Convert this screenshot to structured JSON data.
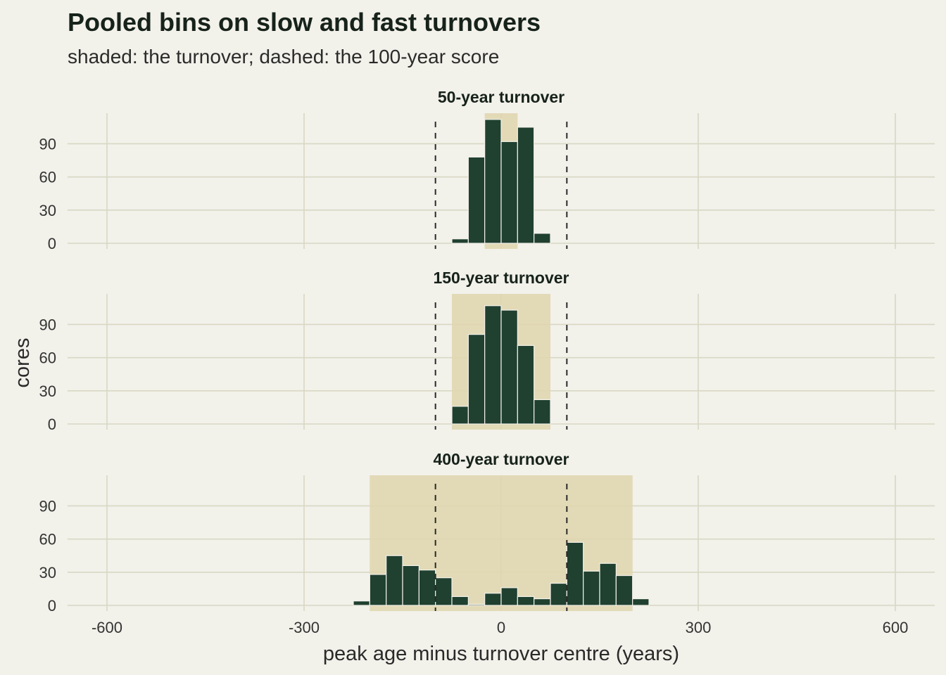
{
  "chart_data": {
    "type": "bar",
    "title": "Pooled bins on slow and fast turnovers",
    "subtitle": "shaded: the turnover; dashed: the 100-year score",
    "xlabel": "peak age minus turnover centre (years)",
    "ylabel": "cores",
    "xlim": [
      -660,
      660
    ],
    "ylim": [
      0,
      120
    ],
    "x_ticks": [
      -600,
      -300,
      0,
      300,
      600
    ],
    "x_tick_labels": [
      "-600",
      "-300",
      "0",
      "300",
      "600"
    ],
    "y_ticks": [
      0,
      30,
      60,
      90
    ],
    "y_tick_labels": [
      "0",
      "30",
      "60",
      "90"
    ],
    "grid": true,
    "bin_width": 25,
    "score_lines": [
      -100,
      100
    ],
    "colors": {
      "background": "#f2f1ea",
      "bar_fill": "#204030",
      "bar_edge": "#f2f1ea",
      "shade": "#e0d6b0",
      "grid": "#d8d8c4",
      "dashed": "#2a2a2a"
    },
    "panels": [
      {
        "title": "50-year turnover",
        "shade": [
          -25,
          25
        ],
        "bins": [
          {
            "x0": -75,
            "count": 4
          },
          {
            "x0": -50,
            "count": 78
          },
          {
            "x0": -25,
            "count": 112
          },
          {
            "x0": 0,
            "count": 92
          },
          {
            "x0": 25,
            "count": 105
          },
          {
            "x0": 50,
            "count": 9
          }
        ]
      },
      {
        "title": "150-year turnover",
        "shade": [
          -75,
          75
        ],
        "bins": [
          {
            "x0": -75,
            "count": 16
          },
          {
            "x0": -50,
            "count": 81
          },
          {
            "x0": -25,
            "count": 107
          },
          {
            "x0": 0,
            "count": 103
          },
          {
            "x0": 25,
            "count": 71
          },
          {
            "x0": 50,
            "count": 22
          }
        ]
      },
      {
        "title": "400-year turnover",
        "shade": [
          -200,
          200
        ],
        "bins": [
          {
            "x0": -225,
            "count": 4
          },
          {
            "x0": -200,
            "count": 28
          },
          {
            "x0": -175,
            "count": 45
          },
          {
            "x0": -150,
            "count": 36
          },
          {
            "x0": -125,
            "count": 32
          },
          {
            "x0": -100,
            "count": 25
          },
          {
            "x0": -75,
            "count": 8
          },
          {
            "x0": -50,
            "count": 1
          },
          {
            "x0": -25,
            "count": 11
          },
          {
            "x0": 0,
            "count": 16
          },
          {
            "x0": 25,
            "count": 8
          },
          {
            "x0": 50,
            "count": 6
          },
          {
            "x0": 75,
            "count": 20
          },
          {
            "x0": 100,
            "count": 57
          },
          {
            "x0": 125,
            "count": 31
          },
          {
            "x0": 150,
            "count": 38
          },
          {
            "x0": 175,
            "count": 27
          },
          {
            "x0": 200,
            "count": 6
          }
        ]
      }
    ]
  }
}
